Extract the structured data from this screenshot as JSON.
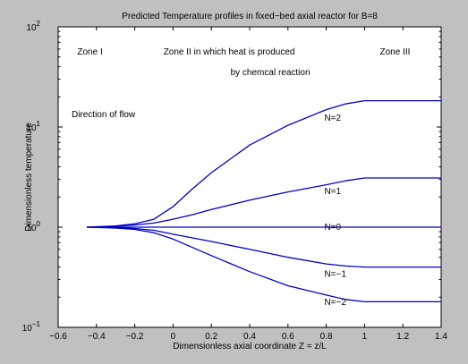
{
  "chart_data": {
    "type": "line",
    "title": "Predicted Temperature profiles in fixed−bed axial reactor for B=8",
    "xlabel": "Dimensionless axial coordinate Z = z/L",
    "ylabel": "Dimensionless temperature",
    "xlim": [
      -0.6,
      1.4
    ],
    "ylim": [
      0.1,
      100
    ],
    "yscale": "log",
    "grid": false,
    "line_color": "#0000c8",
    "xticks": [
      -0.6,
      -0.4,
      -0.2,
      0,
      0.2,
      0.4,
      0.6,
      0.8,
      1,
      1.2,
      1.4
    ],
    "xtick_labels": [
      "−0.6",
      "−0.4",
      "−0.2",
      "0",
      "0.2",
      "0.4",
      "0.6",
      "0.8",
      "1",
      "1.2",
      "1.4"
    ],
    "yticks": [
      {
        "value": 0.1,
        "base": "10",
        "exp": "−1"
      },
      {
        "value": 1,
        "base": "10",
        "exp": "0"
      },
      {
        "value": 10,
        "base": "10",
        "exp": "1"
      },
      {
        "value": 100,
        "base": "10",
        "exp": "2"
      }
    ],
    "series": [
      {
        "name": "N=2",
        "x": [
          -0.45,
          -0.3,
          -0.2,
          -0.1,
          0,
          0.1,
          0.2,
          0.4,
          0.6,
          0.8,
          0.9,
          1.0,
          1.4
        ],
        "y": [
          1.0,
          1.03,
          1.08,
          1.2,
          1.6,
          2.4,
          3.5,
          6.6,
          10.4,
          14.9,
          17.0,
          18.3,
          18.3
        ]
      },
      {
        "name": "N=1",
        "x": [
          -0.45,
          -0.3,
          -0.2,
          -0.1,
          0,
          0.1,
          0.2,
          0.4,
          0.6,
          0.8,
          0.9,
          1.0,
          1.4
        ],
        "y": [
          1.0,
          1.02,
          1.05,
          1.1,
          1.2,
          1.33,
          1.5,
          1.86,
          2.25,
          2.65,
          2.9,
          3.1,
          3.1
        ]
      },
      {
        "name": "N=0",
        "x": [
          -0.45,
          1.4
        ],
        "y": [
          1.0,
          1.0
        ]
      },
      {
        "name": "N=−1",
        "x": [
          -0.45,
          -0.3,
          -0.2,
          -0.1,
          0,
          0.2,
          0.4,
          0.6,
          0.8,
          0.9,
          1.0,
          1.4
        ],
        "y": [
          1.0,
          0.99,
          0.97,
          0.93,
          0.85,
          0.72,
          0.6,
          0.5,
          0.43,
          0.41,
          0.4,
          0.4
        ]
      },
      {
        "name": "N=−2",
        "x": [
          -0.45,
          -0.3,
          -0.2,
          -0.1,
          0,
          0.2,
          0.4,
          0.6,
          0.8,
          0.9,
          1.0,
          1.4
        ],
        "y": [
          1.0,
          0.98,
          0.95,
          0.88,
          0.76,
          0.52,
          0.36,
          0.26,
          0.21,
          0.19,
          0.18,
          0.18
        ]
      }
    ],
    "annotations": [
      {
        "text": "Zone I",
        "x": -0.5,
        "y": 53
      },
      {
        "text": "Zone II in which heat is produced",
        "x": -0.05,
        "y": 53
      },
      {
        "text": "by chemcal reaction",
        "x": 0.3,
        "y": 33
      },
      {
        "text": "Zone III",
        "x": 1.08,
        "y": 53
      },
      {
        "text": "Direction of flow",
        "x": -0.53,
        "y": 12.6
      },
      {
        "text": "N=2",
        "x": 0.79,
        "y": 11.5
      },
      {
        "text": "N=1",
        "x": 0.79,
        "y": 2.15
      },
      {
        "text": "N=0",
        "x": 0.79,
        "y": 0.94
      },
      {
        "text": "N=−1",
        "x": 0.79,
        "y": 0.32
      },
      {
        "text": "N=−2",
        "x": 0.79,
        "y": 0.168
      }
    ]
  }
}
